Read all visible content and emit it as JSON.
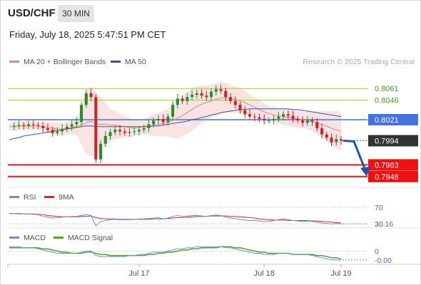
{
  "header": {
    "pair": "USD/CHF",
    "interval": "30 MIN",
    "datetime": "Friday, July 18, 2025 5:47:51 PM CET"
  },
  "legend": {
    "bollinger_label": "MA 20 + Bollinger Bands",
    "bollinger_color": "#f08080",
    "ma50_label": "MA 50",
    "ma50_color": "#2f5b9e",
    "credit": "Research © 2025 Trading Central"
  },
  "colors": {
    "up_candle": "#2a8a2a",
    "down_candle": "#cc2222",
    "resistance_green": "#9cc85a",
    "pivot_blue": "#4472e0",
    "support_red": "#ee1111",
    "current_price_bg": "#333333",
    "arrow": "#2255aa",
    "rsi_line": "#6b8fd6",
    "rsi_ma": "#dd2222",
    "macd_line": "#6b8fd6",
    "macd_signal": "#5aa02c"
  },
  "chart_data": [
    {
      "type": "line",
      "panel": "price",
      "ylim": [
        0.7935,
        0.8085
      ],
      "levels": [
        {
          "name": "resistance_2",
          "value": 0.8061,
          "label": "0.8061",
          "style": "green-line"
        },
        {
          "name": "resistance_1",
          "value": 0.8046,
          "label": "0.8046",
          "style": "green-line"
        },
        {
          "name": "pivot",
          "value": 0.8021,
          "label": "0.8021",
          "style": "blue-tag"
        },
        {
          "name": "last_price",
          "value": 0.7994,
          "label": "0.7994",
          "style": "dark-tag"
        },
        {
          "name": "support_1",
          "value": 0.7963,
          "label": "0.7963",
          "style": "red-tag"
        },
        {
          "name": "support_2",
          "value": 0.7948,
          "label": "0.7948",
          "style": "red-tag"
        }
      ],
      "x_ticks": [
        {
          "label": "Jul 17",
          "index": 27
        },
        {
          "label": "Jul 18",
          "index": 53
        },
        {
          "label": "Jul 19",
          "index": 69
        }
      ],
      "price_series": [
        0.8012,
        0.8013,
        0.8014,
        0.8013,
        0.8015,
        0.8014,
        0.8013,
        0.801,
        0.8008,
        0.8004,
        0.8006,
        0.8009,
        0.8012,
        0.8015,
        0.8018,
        0.804,
        0.8055,
        0.805,
        0.797,
        0.799,
        0.8,
        0.8005,
        0.8008,
        0.8006,
        0.8004,
        0.8005,
        0.8006,
        0.8008,
        0.801,
        0.8015,
        0.802,
        0.8022,
        0.8018,
        0.8025,
        0.804,
        0.8048,
        0.8045,
        0.805,
        0.8053,
        0.8055,
        0.8052,
        0.805,
        0.8057,
        0.806,
        0.8058,
        0.805,
        0.8045,
        0.804,
        0.8033,
        0.8028,
        0.8025,
        0.8024,
        0.8022,
        0.802,
        0.802,
        0.8022,
        0.8025,
        0.8028,
        0.8026,
        0.8022,
        0.802,
        0.8017,
        0.802,
        0.8018,
        0.801,
        0.8002,
        0.7998,
        0.7992,
        0.7996,
        0.7994
      ],
      "ma20": [
        0.8012,
        0.8012,
        0.8013,
        0.8013,
        0.8013,
        0.8013,
        0.8013,
        0.8012,
        0.8011,
        0.801,
        0.8009,
        0.8009,
        0.801,
        0.8011,
        0.8012,
        0.8014,
        0.8017,
        0.8019,
        0.8016,
        0.8015,
        0.8015,
        0.8014,
        0.8014,
        0.8013,
        0.8012,
        0.8011,
        0.801,
        0.8011,
        0.8012,
        0.8013,
        0.8014,
        0.8015,
        0.8016,
        0.8017,
        0.802,
        0.8023,
        0.8026,
        0.803,
        0.8034,
        0.8038,
        0.8041,
        0.8043,
        0.8045,
        0.8047,
        0.8049,
        0.8049,
        0.8048,
        0.8047,
        0.8045,
        0.8043,
        0.804,
        0.8037,
        0.8034,
        0.8031,
        0.8029,
        0.8027,
        0.8026,
        0.8025,
        0.8024,
        0.8023,
        0.8022,
        0.8021,
        0.802,
        0.8019,
        0.8017,
        0.8015,
        0.8013,
        0.801,
        0.8008,
        0.8006
      ],
      "bb_width": [
        0.0005,
        0.0005,
        0.0005,
        0.0005,
        0.0005,
        0.0005,
        0.0005,
        0.0006,
        0.0007,
        0.0008,
        0.0008,
        0.0008,
        0.0008,
        0.0009,
        0.0011,
        0.0025,
        0.004,
        0.0045,
        0.004,
        0.0035,
        0.0028,
        0.002,
        0.0018,
        0.0016,
        0.0014,
        0.0012,
        0.001,
        0.001,
        0.001,
        0.0012,
        0.0014,
        0.0015,
        0.0016,
        0.0018,
        0.0022,
        0.0026,
        0.0026,
        0.0027,
        0.0027,
        0.0026,
        0.0024,
        0.0022,
        0.0021,
        0.0021,
        0.002,
        0.0019,
        0.0018,
        0.0017,
        0.0016,
        0.0015,
        0.0014,
        0.0013,
        0.0012,
        0.0011,
        0.001,
        0.001,
        0.001,
        0.0011,
        0.0011,
        0.0011,
        0.0011,
        0.0011,
        0.0011,
        0.0013,
        0.0015,
        0.0017,
        0.0019,
        0.0022,
        0.0024,
        0.0025
      ],
      "ma50": [
        0.7995,
        0.7997,
        0.7998,
        0.8,
        0.8001,
        0.8002,
        0.8003,
        0.8004,
        0.8005,
        0.8006,
        0.8007,
        0.8008,
        0.8009,
        0.801,
        0.8011,
        0.8012,
        0.8013,
        0.8013,
        0.8012,
        0.8012,
        0.8012,
        0.8012,
        0.8012,
        0.8012,
        0.8012,
        0.8012,
        0.8012,
        0.8012,
        0.8012,
        0.8012,
        0.8013,
        0.8013,
        0.8014,
        0.8015,
        0.8016,
        0.8017,
        0.8018,
        0.8019,
        0.8021,
        0.8022,
        0.8024,
        0.8025,
        0.8027,
        0.8028,
        0.803,
        0.8031,
        0.8032,
        0.8033,
        0.8034,
        0.8034,
        0.8035,
        0.8035,
        0.8035,
        0.8035,
        0.8035,
        0.8035,
        0.8035,
        0.8035,
        0.8035,
        0.8034,
        0.8034,
        0.8033,
        0.8032,
        0.8031,
        0.803,
        0.8029,
        0.8028,
        0.8027,
        0.8026,
        0.8025
      ],
      "forecast": {
        "from": 0.7994,
        "to": 0.7948
      }
    },
    {
      "type": "line",
      "panel": "rsi",
      "series": [
        {
          "name": "RSI",
          "values": [
            55,
            55,
            54,
            54,
            54,
            53,
            52,
            48,
            46,
            44,
            45,
            46,
            47,
            48,
            48,
            50,
            52,
            50,
            25,
            35,
            38,
            40,
            41,
            40,
            40,
            40,
            41,
            42,
            42,
            43,
            44,
            45,
            42,
            44,
            48,
            50,
            48,
            49,
            50,
            50,
            49,
            48,
            50,
            51,
            50,
            46,
            44,
            43,
            40,
            39,
            38,
            38,
            37,
            36,
            36,
            38,
            40,
            42,
            40,
            38,
            37,
            36,
            37,
            36,
            34,
            32,
            31,
            30,
            31,
            30.16
          ]
        },
        {
          "name": "9MA",
          "values": [
            55,
            55,
            55,
            54,
            54,
            54,
            53,
            52,
            50,
            49,
            48,
            47,
            47,
            47,
            47,
            48,
            48,
            49,
            45,
            43,
            42,
            42,
            42,
            41,
            41,
            41,
            41,
            41,
            41,
            41,
            42,
            42,
            42,
            43,
            44,
            45,
            45,
            46,
            47,
            48,
            48,
            48,
            49,
            49,
            49,
            49,
            48,
            48,
            47,
            46,
            45,
            44,
            42,
            41,
            40,
            39,
            39,
            39,
            38,
            38,
            38,
            38,
            38,
            37,
            37,
            36,
            35,
            34,
            33,
            32
          ]
        }
      ],
      "levels": [
        {
          "value": 70,
          "label": "70"
        },
        {
          "value": 30,
          "label": "30"
        }
      ],
      "last_value_label": "30.16",
      "ylim": [
        20,
        80
      ]
    },
    {
      "type": "line",
      "panel": "macd",
      "series": [
        {
          "name": "MACD",
          "values": [
            0.0004,
            0.0004,
            0.0004,
            0.0003,
            0.0003,
            0.0003,
            0.0002,
            0.0001,
            0.0,
            -0.0001,
            -0.0002,
            -0.0002,
            -0.0002,
            -0.0002,
            -0.0002,
            -0.0001,
            0.0,
            0.0,
            -0.0004,
            -0.0005,
            -0.0005,
            -0.0005,
            -0.0005,
            -0.0005,
            -0.0005,
            -0.0004,
            -0.0004,
            -0.0003,
            -0.0003,
            -0.0002,
            -0.0001,
            -0.0001,
            -0.0001,
            0.0,
            0.0001,
            0.0002,
            0.0002,
            0.0003,
            0.0003,
            0.0004,
            0.0004,
            0.0004,
            0.0004,
            0.0004,
            0.0004,
            0.0003,
            0.0003,
            0.0002,
            0.0001,
            0.0,
            -0.0001,
            -0.0002,
            -0.0002,
            -0.0003,
            -0.0003,
            -0.0003,
            -0.0002,
            -0.0002,
            -0.0002,
            -0.0003,
            -0.0003,
            -0.0003,
            -0.0003,
            -0.0004,
            -0.0005,
            -0.0006,
            -0.0007,
            -0.0008,
            -0.0008,
            -0.0008
          ]
        },
        {
          "name": "MACD Signal",
          "values": [
            0.0003,
            0.0003,
            0.0003,
            0.0003,
            0.0003,
            0.0003,
            0.0003,
            0.0002,
            0.0002,
            0.0001,
            0.0,
            -0.0001,
            -0.0001,
            -0.0002,
            -0.0002,
            -0.0002,
            -0.0001,
            -0.0001,
            -0.0002,
            -0.0003,
            -0.0003,
            -0.0004,
            -0.0004,
            -0.0004,
            -0.0004,
            -0.0004,
            -0.0004,
            -0.0004,
            -0.0004,
            -0.0003,
            -0.0003,
            -0.0002,
            -0.0002,
            -0.0001,
            -0.0001,
            0.0,
            0.0001,
            0.0001,
            0.0002,
            0.0002,
            0.0003,
            0.0003,
            0.0003,
            0.0003,
            0.0004,
            0.0004,
            0.0004,
            0.0003,
            0.0003,
            0.0002,
            0.0001,
            0.0,
            -0.0001,
            -0.0001,
            -0.0002,
            -0.0002,
            -0.0002,
            -0.0002,
            -0.0002,
            -0.0003,
            -0.0003,
            -0.0003,
            -0.0003,
            -0.0003,
            -0.0004,
            -0.0004,
            -0.0005,
            -0.0006,
            -0.0006,
            -0.0007
          ]
        }
      ],
      "levels": [
        {
          "value": 0,
          "label": "0"
        }
      ],
      "last_value_label": "-0.00",
      "ylim": [
        -0.0012,
        0.0008
      ]
    }
  ]
}
